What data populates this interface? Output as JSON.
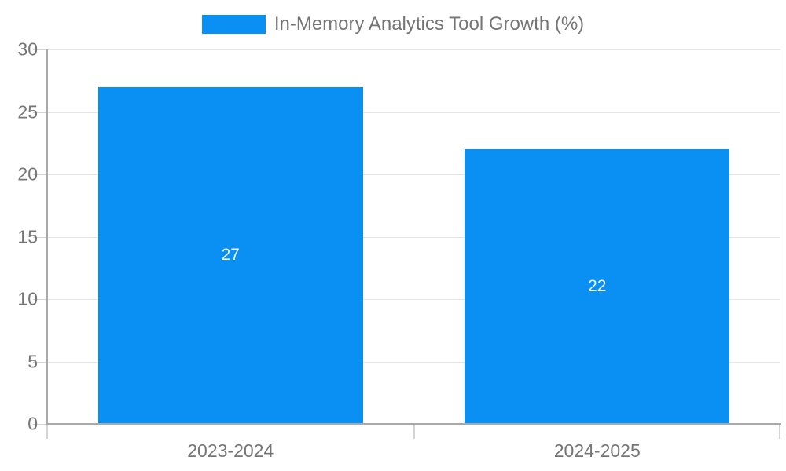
{
  "chart_data": {
    "type": "bar",
    "title": "In-Memory Analytics Tool Growth (%)",
    "xlabel": "",
    "ylabel": "",
    "categories": [
      "2023-2024",
      "2024-2025"
    ],
    "values": [
      27,
      22
    ],
    "ylim": [
      0,
      30
    ],
    "yticks": [
      0,
      5,
      10,
      15,
      20,
      25,
      30
    ],
    "grid": true,
    "legend": {
      "position": "top-center",
      "entries": [
        {
          "label": "In-Memory Analytics Tool Growth (%)",
          "color": "#0a8ff2"
        }
      ]
    },
    "colors": {
      "bar": "#0a8ff2",
      "bar_label": "#f2f2f2",
      "axis": "#a9a9a9",
      "gridline": "#e4e4e4",
      "tick": "#d4d4d4",
      "label_text": "#757575",
      "background": "#ffffff"
    }
  }
}
